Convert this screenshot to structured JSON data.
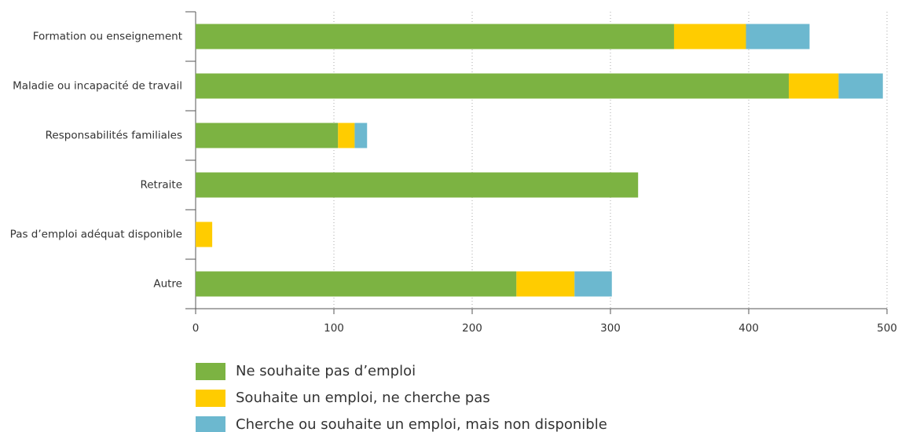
{
  "chart_data": {
    "type": "bar",
    "orientation": "horizontal",
    "stacked": true,
    "categories": [
      "Formation ou enseignement",
      "Maladie ou incapacité de travail",
      "Responsabilités familiales",
      "Retraite",
      "Pas d’emploi adéquat disponible",
      "Autre"
    ],
    "series": [
      {
        "name": "Ne souhaite pas d’emploi",
        "color": "#7cb342",
        "values": [
          346,
          429,
          103,
          320,
          0,
          232
        ]
      },
      {
        "name": "Souhaite un emploi, ne cherche pas",
        "color": "#ffcc00",
        "values": [
          52,
          36,
          12,
          0,
          12,
          42
        ]
      },
      {
        "name": "Cherche ou souhaite un emploi, mais non disponible",
        "color": "#6cb8cf",
        "values": [
          46,
          32,
          9,
          0,
          0,
          27
        ]
      }
    ],
    "xlim": [
      0,
      500
    ],
    "xticks": [
      0,
      100,
      200,
      300,
      400,
      500
    ],
    "grid": true,
    "legend": "bottom"
  }
}
